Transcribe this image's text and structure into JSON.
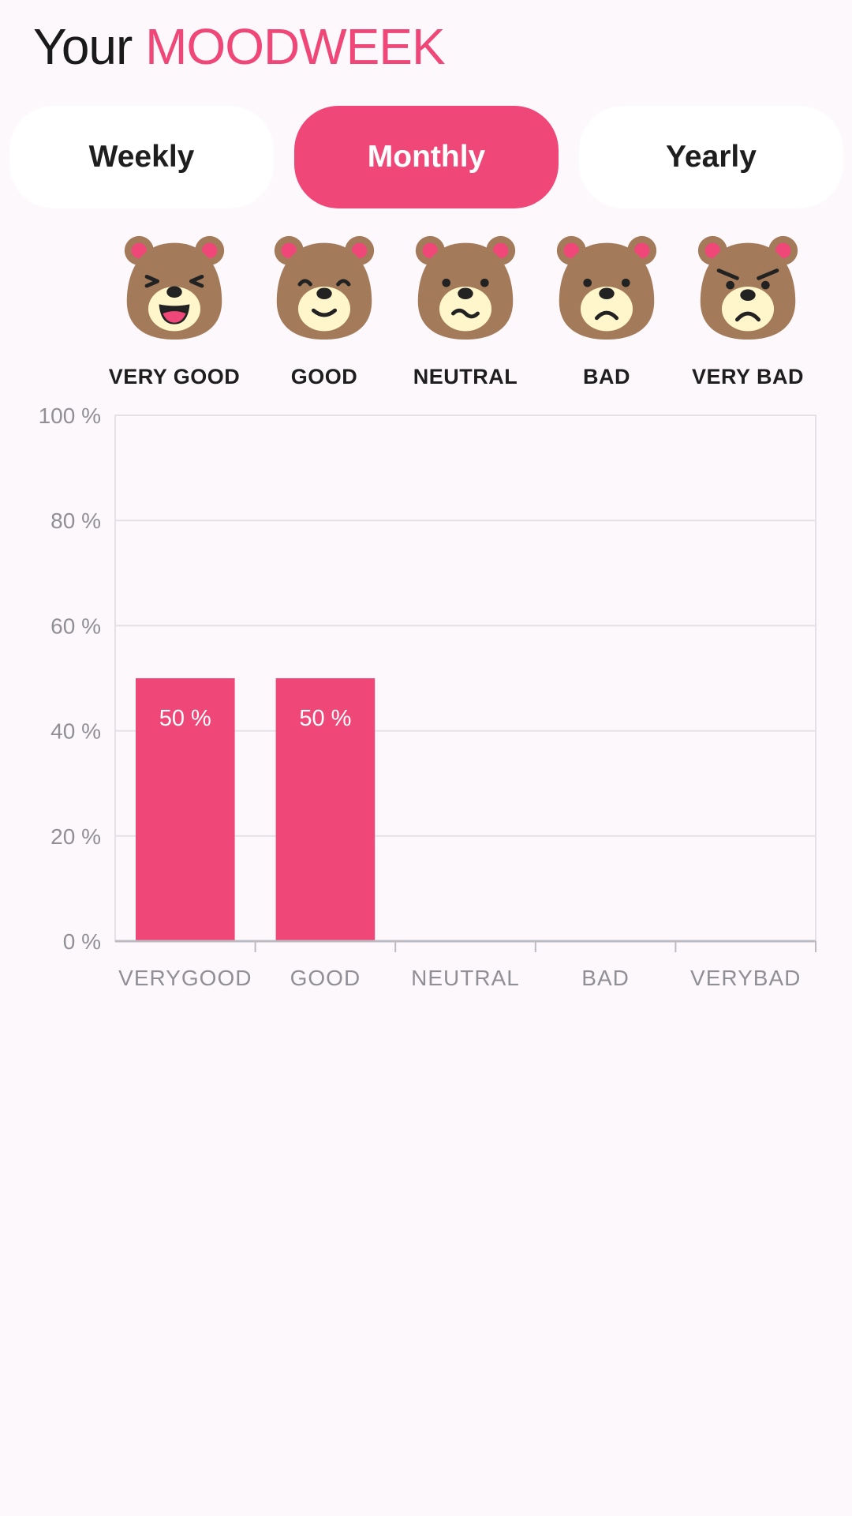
{
  "header": {
    "title_prefix": "Your",
    "title_accent": "MOODWEEK"
  },
  "tabs": [
    {
      "label": "Weekly",
      "active": false
    },
    {
      "label": "Monthly",
      "active": true
    },
    {
      "label": "Yearly",
      "active": false
    }
  ],
  "moods": [
    {
      "label": "VERY GOOD",
      "icon": "bear-very-good-icon"
    },
    {
      "label": "GOOD",
      "icon": "bear-good-icon"
    },
    {
      "label": "NEUTRAL",
      "icon": "bear-neutral-icon"
    },
    {
      "label": "BAD",
      "icon": "bear-bad-icon"
    },
    {
      "label": "VERY BAD",
      "icon": "bear-very-bad-icon"
    }
  ],
  "colors": {
    "accent": "#EF4777",
    "bear_fur": "#A47B5A",
    "bear_muzzle": "#FFF6CC",
    "bear_ear": "#EF4777",
    "background": "#FDF8FC"
  },
  "chart_data": {
    "type": "bar",
    "categories": [
      "VERYGOOD",
      "GOOD",
      "NEUTRAL",
      "BAD",
      "VERYBAD"
    ],
    "values": [
      50,
      50,
      0,
      0,
      0
    ],
    "data_labels": [
      "50 %",
      "50 %",
      "",
      "",
      ""
    ],
    "yticks": [
      "0 %",
      "20 %",
      "40 %",
      "60 %",
      "80 %",
      "100 %"
    ],
    "ytick_values": [
      0,
      20,
      40,
      60,
      80,
      100
    ],
    "ylim": [
      0,
      100
    ],
    "grid": true,
    "title": "",
    "xlabel": "",
    "ylabel": ""
  }
}
